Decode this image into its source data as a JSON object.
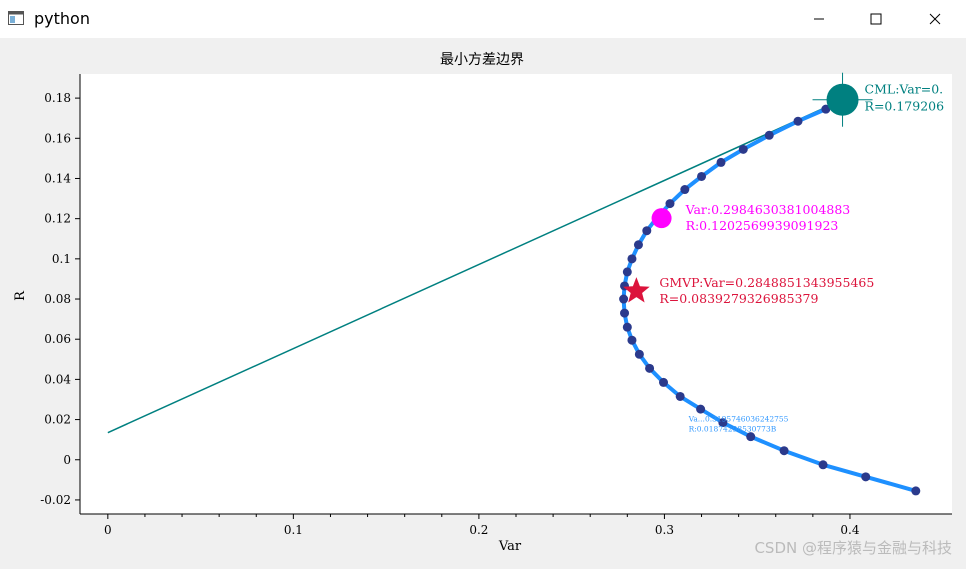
{
  "window": {
    "title": "python",
    "icon": "window-app-icon",
    "controls": [
      "minimize-icon",
      "maximize-icon",
      "close-icon"
    ]
  },
  "watermark": "CSDN @程序猿与金融与科技",
  "chart_data": {
    "type": "line",
    "title": "最小方差边界",
    "xlabel": "Var",
    "ylabel": "R",
    "xlim": [
      -0.015,
      0.455
    ],
    "ylim": [
      -0.027,
      0.192
    ],
    "xticks": [
      {
        "v": 0,
        "label": "0"
      },
      {
        "v": 0.1,
        "label": "0.1"
      },
      {
        "v": 0.2,
        "label": "0.2"
      },
      {
        "v": 0.3,
        "label": "0.3"
      },
      {
        "v": 0.4,
        "label": "0.4"
      }
    ],
    "yticks": [
      {
        "v": -0.02,
        "label": "-0.02"
      },
      {
        "v": 0,
        "label": "0"
      },
      {
        "v": 0.02,
        "label": "0.02"
      },
      {
        "v": 0.04,
        "label": "0.04"
      },
      {
        "v": 0.06,
        "label": "0.06"
      },
      {
        "v": 0.08,
        "label": "0.08"
      },
      {
        "v": 0.1,
        "label": "0.1"
      },
      {
        "v": 0.12,
        "label": "0.12"
      },
      {
        "v": 0.14,
        "label": "0.14"
      },
      {
        "v": 0.16,
        "label": "0.16"
      },
      {
        "v": 0.18,
        "label": "0.18"
      }
    ],
    "frontier": {
      "color": "#1e90ff",
      "marker_color": "#2b3a8c",
      "points": [
        [
          0.4355,
          -0.0155
        ],
        [
          0.4085,
          -0.0085
        ],
        [
          0.3855,
          -0.0025
        ],
        [
          0.3645,
          0.0045
        ],
        [
          0.3465,
          0.0115
        ],
        [
          0.3315,
          0.0185
        ],
        [
          0.3195,
          0.0252
        ],
        [
          0.3085,
          0.0315
        ],
        [
          0.2995,
          0.0385
        ],
        [
          0.292,
          0.0455
        ],
        [
          0.2865,
          0.0525
        ],
        [
          0.2825,
          0.0595
        ],
        [
          0.28,
          0.066
        ],
        [
          0.2785,
          0.073
        ],
        [
          0.278,
          0.08
        ],
        [
          0.2785,
          0.0865
        ],
        [
          0.28,
          0.0935
        ],
        [
          0.2825,
          0.1
        ],
        [
          0.286,
          0.107
        ],
        [
          0.2905,
          0.114
        ],
        [
          0.296,
          0.1205
        ],
        [
          0.303,
          0.1275
        ],
        [
          0.311,
          0.1345
        ],
        [
          0.32,
          0.141
        ],
        [
          0.3305,
          0.148
        ],
        [
          0.3425,
          0.1545
        ],
        [
          0.3565,
          0.1615
        ],
        [
          0.372,
          0.1685
        ],
        [
          0.387,
          0.1745
        ],
        [
          0.396,
          0.179
        ]
      ]
    },
    "cml": {
      "color": "#008080",
      "start": [
        0,
        0.0135
      ],
      "end": [
        0.396,
        0.1792
      ],
      "point_label_1": "CML:Var=0.",
      "point_label_2": "R=0.179206"
    },
    "highlight_point": {
      "color": "#ff00ff",
      "var": 0.2984630381004883,
      "r": 0.1202569939091923,
      "label_1": "Var:0.2984630381004883",
      "label_2": "R:0.1202569939091923"
    },
    "gmvp": {
      "color": "#dc143c",
      "var": 0.2848851343955465,
      "r": 0.0839279326985379,
      "label_1": "GMVP:Var=0.2848851343955465",
      "label_2": "R=0.0839279326985379"
    },
    "small_annotation": {
      "color": "#3399ff",
      "var": 0.3195,
      "r": 0.018,
      "label_1": "Va...0.3195746036242755",
      "label_2": "R:0.01874298530773B"
    }
  }
}
